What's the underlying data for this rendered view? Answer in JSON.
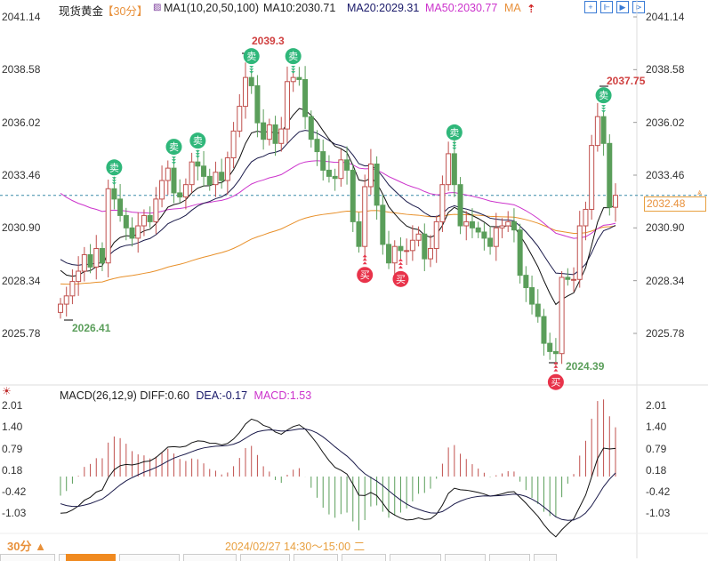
{
  "header": {
    "instrument": "现货黄金",
    "period": "【30分】",
    "ma_label": "MA1(10,20,50,100)",
    "ma10": "MA10:2030.71",
    "ma20": "MA20:2029.31",
    "ma50": "MA50:2030.77",
    "ma100": "MA",
    "toolbar_icons": [
      "crosshair-icon",
      "chart-zoom-icon",
      "play-icon",
      "next-icon"
    ]
  },
  "macd_header": {
    "label": "MACD(26,12,9)",
    "diff": "DIFF:0.60",
    "dea": "DEA:-0.17",
    "macd": "MACD:1.53"
  },
  "bottom": {
    "period_selector": "30分 ▲",
    "date_label": "2024/02/27 14:30～15:00 二"
  },
  "colors": {
    "up": "#c0504d",
    "down": "#5a9e5a",
    "ma10": "#111111",
    "ma20": "#1a1a4a",
    "ma50": "#cc33cc",
    "ma100": "#e8902a",
    "sell": "#2fb77a",
    "buy": "#e8334a",
    "accent": "#e8903a"
  },
  "chart_data": [
    {
      "type": "candlestick",
      "yaxis_ticks": [
        "2041.14",
        "2038.58",
        "2036.02",
        "2033.46",
        "2030.90",
        "2028.34",
        "2025.78"
      ],
      "ylim": [
        2025.78,
        2041.14
      ],
      "current_price": "2032.48",
      "high_label": "2039.3",
      "high_label_2": "2037.75",
      "low_label": "2026.41",
      "low_label_2": "2024.39",
      "closes": [
        2027.2,
        2027.6,
        2028.3,
        2028.8,
        2029.6,
        2029.0,
        2029.9,
        2029.2,
        2032.8,
        2032.3,
        2031.5,
        2030.9,
        2030.4,
        2031.0,
        2031.5,
        2031.2,
        2032.3,
        2033.2,
        2033.8,
        2032.6,
        2032.4,
        2033.0,
        2034.1,
        2033.9,
        2033.4,
        2033.0,
        2033.6,
        2033.2,
        2034.3,
        2035.6,
        2036.8,
        2038.2,
        2037.8,
        2036.0,
        2035.2,
        2035.9,
        2035.0,
        2035.7,
        2038.0,
        2038.2,
        2038.1,
        2036.3,
        2035.2,
        2034.6,
        2033.7,
        2033.4,
        2033.3,
        2034.2,
        2033.7,
        2031.2,
        2030.0,
        2032.9,
        2034.0,
        2032.0,
        2030.1,
        2029.2,
        2030.0,
        2029.8,
        2029.8,
        2030.3,
        2030.6,
        2029.4,
        2029.9,
        2031.2,
        2033.0,
        2034.5,
        2033.0,
        2031.0,
        2031.2,
        2030.9,
        2030.7,
        2030.4,
        2030.0,
        2030.9,
        2031.0,
        2031.2,
        2030.8,
        2028.6,
        2028.0,
        2027.2,
        2026.6,
        2025.3,
        2024.9,
        2024.8,
        2028.5,
        2028.4,
        2028.4,
        2031.0,
        2031.8,
        2034.9,
        2036.3,
        2035.0,
        2031.9,
        2032.48
      ],
      "sell_signals": {
        "label": "卖",
        "indices": [
          9,
          19,
          23,
          32,
          39,
          66,
          91
        ]
      },
      "buy_signals": {
        "label": "买",
        "indices": [
          51,
          57,
          83
        ]
      }
    },
    {
      "type": "macd",
      "yaxis_ticks": [
        "2.01",
        "1.40",
        "0.79",
        "0.18",
        "-0.42",
        "-1.03"
      ],
      "ylim": [
        -1.03,
        2.01
      ]
    }
  ]
}
